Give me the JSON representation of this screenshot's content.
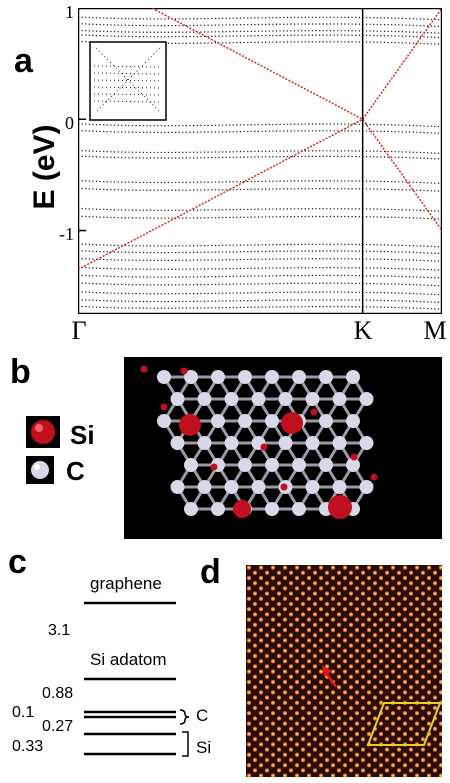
{
  "panels": {
    "a": {
      "letter": "a"
    },
    "b": {
      "letter": "b"
    },
    "c": {
      "letter": "c"
    },
    "d": {
      "letter": "d"
    }
  },
  "chart_data": {
    "type": "line",
    "ylabel": "E (eV)",
    "ylim": [
      -1.75,
      1
    ],
    "y_ticks": [
      "1",
      "0",
      "-1"
    ],
    "x_ticks": [
      "Γ",
      "K",
      "M"
    ],
    "k_path": {
      "K": 0.782,
      "M": 1.0
    },
    "dirac_point_energy": 0.0,
    "series": [
      {
        "style": "red-dotted",
        "points": [
          [
            0.0,
            -1.35
          ],
          [
            0.782,
            0.0
          ],
          [
            1.0,
            -1.0
          ]
        ]
      },
      {
        "style": "red-dotted",
        "points": [
          [
            0.0,
            1.35
          ],
          [
            0.782,
            0.0
          ],
          [
            1.0,
            1.0
          ]
        ]
      }
    ],
    "flat_band_energies": [
      0.92,
      0.86,
      0.8,
      0.76,
      0.7,
      -0.04,
      -0.1,
      -0.28,
      -0.33,
      -0.55,
      -0.62,
      -0.8,
      -0.87,
      -1.12,
      -1.18,
      -1.25,
      -1.33,
      -1.4,
      -1.47,
      -1.55,
      -1.62,
      -1.68
    ]
  },
  "legend_b": {
    "si": {
      "label": "Si",
      "color": "#c01020"
    },
    "c": {
      "label": "C",
      "color": "#d8d8e8"
    }
  },
  "levels_c": {
    "graphene_label": "graphene",
    "si_adatom_label": "Si adatom",
    "gap_3_1": "3.1",
    "v_0_88": "0.88",
    "v_0_1": "0.1",
    "v_0_27": "0.27",
    "v_0_33": "0.33",
    "bracket_c": "C",
    "bracket_si": "Si"
  },
  "colors": {
    "band_red": "#d41c1c",
    "stm_background": "#2a0c08",
    "stm_marker": "#e8d020",
    "arrow": "#e01818"
  }
}
